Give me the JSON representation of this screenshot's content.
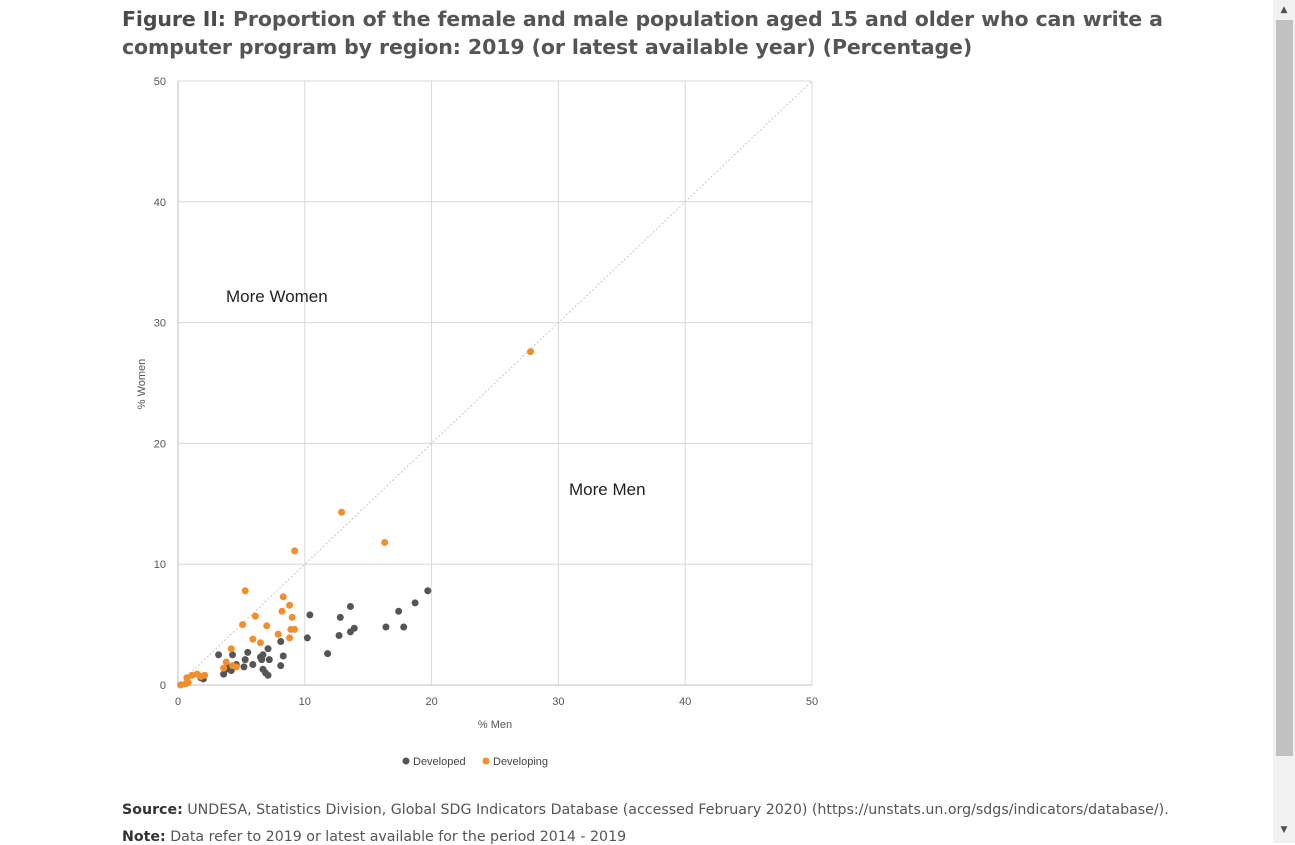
{
  "figure": {
    "label": "Figure II:",
    "title": "Proportion of the female and male population aged 15 and older who can write a computer program by region: 2019 (or latest available year) (Percentage)"
  },
  "chart_data": {
    "type": "scatter",
    "xlabel": "% Men",
    "ylabel": "% Women",
    "xlim": [
      0,
      50
    ],
    "ylim": [
      0,
      50
    ],
    "xticks": [
      "0",
      "10",
      "20",
      "30",
      "40",
      "50"
    ],
    "yticks": [
      "0",
      "10",
      "20",
      "30",
      "40",
      "50"
    ],
    "grid": true,
    "diagonal_reference_line": true,
    "legend_position": "bottom",
    "annotations": [
      "More Women",
      "More Men"
    ],
    "series": [
      {
        "name": "Developed",
        "color": "#555555",
        "points": [
          [
            1.8,
            0.6
          ],
          [
            2.0,
            0.5
          ],
          [
            3.2,
            2.5
          ],
          [
            3.6,
            0.9
          ],
          [
            3.8,
            1.3
          ],
          [
            4.0,
            1.5
          ],
          [
            4.2,
            1.2
          ],
          [
            4.3,
            2.5
          ],
          [
            4.6,
            1.7
          ],
          [
            5.2,
            1.5
          ],
          [
            5.3,
            2.1
          ],
          [
            5.5,
            2.7
          ],
          [
            5.9,
            1.7
          ],
          [
            6.5,
            2.3
          ],
          [
            6.6,
            2.1
          ],
          [
            6.7,
            2.5
          ],
          [
            6.7,
            1.3
          ],
          [
            6.9,
            1.0
          ],
          [
            7.1,
            0.8
          ],
          [
            7.1,
            3.0
          ],
          [
            7.2,
            2.1
          ],
          [
            8.1,
            1.6
          ],
          [
            8.1,
            3.6
          ],
          [
            8.3,
            2.4
          ],
          [
            10.2,
            3.9
          ],
          [
            10.4,
            5.8
          ],
          [
            11.8,
            2.6
          ],
          [
            12.7,
            4.1
          ],
          [
            12.8,
            5.6
          ],
          [
            13.6,
            6.5
          ],
          [
            13.6,
            4.4
          ],
          [
            13.9,
            4.7
          ],
          [
            16.4,
            4.8
          ],
          [
            17.4,
            6.1
          ],
          [
            17.8,
            4.8
          ],
          [
            18.7,
            6.8
          ],
          [
            19.7,
            7.8
          ]
        ]
      },
      {
        "name": "Developing",
        "color": "#F28E2B",
        "points": [
          [
            0.2,
            0.0
          ],
          [
            0.6,
            0.1
          ],
          [
            0.8,
            0.2
          ],
          [
            0.7,
            0.6
          ],
          [
            1.1,
            0.8
          ],
          [
            1.5,
            0.9
          ],
          [
            1.8,
            0.7
          ],
          [
            2.1,
            0.8
          ],
          [
            3.6,
            1.4
          ],
          [
            3.8,
            1.9
          ],
          [
            4.2,
            3.0
          ],
          [
            4.3,
            1.6
          ],
          [
            4.6,
            1.5
          ],
          [
            5.1,
            5.0
          ],
          [
            5.3,
            7.8
          ],
          [
            5.9,
            3.8
          ],
          [
            6.1,
            5.7
          ],
          [
            6.5,
            3.5
          ],
          [
            7.0,
            4.9
          ],
          [
            7.9,
            4.2
          ],
          [
            8.2,
            6.1
          ],
          [
            8.3,
            7.3
          ],
          [
            8.8,
            3.9
          ],
          [
            8.8,
            6.6
          ],
          [
            8.9,
            4.6
          ],
          [
            9.0,
            5.6
          ],
          [
            9.2,
            4.6
          ],
          [
            9.2,
            11.1
          ],
          [
            12.9,
            14.3
          ],
          [
            16.3,
            11.8
          ],
          [
            27.8,
            27.6
          ]
        ]
      }
    ]
  },
  "footer": {
    "source_label": "Source:",
    "source_text": "UNDESA, Statistics Division, Global SDG Indicators Database (accessed February 2020) (https://unstats.un.org/sdgs/indicators/database/).",
    "note_label": "Note:",
    "note_text": "Data refer to 2019 or latest available for the period 2014 - 2019"
  },
  "scrollbar": {
    "up_icon": "triangle-up-icon",
    "down_icon": "triangle-down-icon"
  }
}
